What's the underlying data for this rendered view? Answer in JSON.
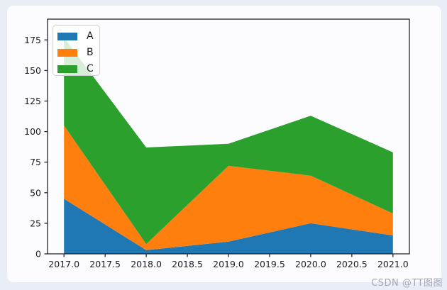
{
  "watermark": "CSDN @TT图图",
  "legend": {
    "items": [
      {
        "label": "A",
        "color": "#1f77b4"
      },
      {
        "label": "B",
        "color": "#ff7f0e"
      },
      {
        "label": "C",
        "color": "#2ca02c"
      }
    ]
  },
  "chart_data": {
    "type": "area",
    "stacked": true,
    "title": "",
    "xlabel": "",
    "ylabel": "",
    "x": [
      2017,
      2018,
      2019,
      2020,
      2021
    ],
    "series": [
      {
        "name": "A",
        "color": "#1f77b4",
        "values": [
          45,
          3,
          10,
          25,
          15
        ]
      },
      {
        "name": "B",
        "color": "#ff7f0e",
        "values": [
          60,
          5,
          62,
          39,
          18
        ]
      },
      {
        "name": "C",
        "color": "#2ca02c",
        "values": [
          72,
          79,
          18,
          49,
          50
        ]
      }
    ],
    "stack_tops": {
      "A": [
        45,
        3,
        10,
        25,
        15
      ],
      "A_plus_B": [
        105,
        8,
        72,
        64,
        33
      ],
      "A_plus_B_plus_C": [
        177,
        87,
        90,
        113,
        83
      ]
    },
    "xlim": [
      2016.8,
      2021.2
    ],
    "ylim": [
      0,
      192
    ],
    "xticks": [
      2017.0,
      2017.5,
      2018.0,
      2018.5,
      2019.0,
      2019.5,
      2020.0,
      2020.5,
      2021.0
    ],
    "xtick_labels": [
      "2017.0",
      "2017.5",
      "2018.0",
      "2018.5",
      "2019.0",
      "2019.5",
      "2020.0",
      "2020.5",
      "2021.0"
    ],
    "yticks": [
      0,
      25,
      50,
      75,
      100,
      125,
      150,
      175
    ],
    "ytick_labels": [
      "0",
      "25",
      "50",
      "75",
      "100",
      "125",
      "150",
      "175"
    ],
    "grid": false,
    "legend_position": "upper left"
  },
  "colors": {
    "page_background": "#e9edf6",
    "figure_background": "#fcfcfe",
    "axis": "#23232f",
    "tick_text": "#1b1b25",
    "watermark_text": "#a4a7b6"
  }
}
